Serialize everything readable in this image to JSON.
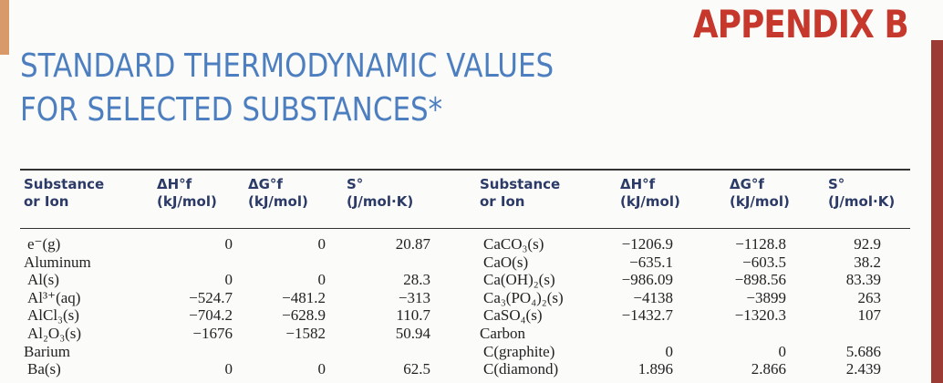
{
  "header": {
    "appendix": "APPENDIX B",
    "title_lines": [
      "STANDARD THERMODYNAMIC VALUES",
      "FOR SELECTED SUBSTANCES*"
    ]
  },
  "table": {
    "left": {
      "columns": [
        [
          "Substance",
          "or Ion"
        ],
        [
          "ΔH°f",
          "(kJ/mol)"
        ],
        [
          "ΔG°f",
          "(kJ/mol)"
        ],
        [
          "S°",
          "(J/mol·K)"
        ]
      ],
      "rows": [
        [
          "e⁻(g)",
          "0",
          "0",
          "20.87"
        ],
        [
          "Aluminum"
        ],
        [
          "Al(s)",
          "0",
          "0",
          "28.3"
        ],
        [
          "Al³⁺(aq)",
          "−524.7",
          "−481.2",
          "−313"
        ],
        [
          "AlCl₃(s)",
          "−704.2",
          "−628.9",
          "110.7"
        ],
        [
          "Al₂O₃(s)",
          "−1676",
          "−1582",
          "50.94"
        ],
        [
          "Barium"
        ],
        [
          "Ba(s)",
          "0",
          "0",
          "62.5"
        ]
      ]
    },
    "right": {
      "columns": [
        [
          "Substance",
          "or Ion"
        ],
        [
          "ΔH°f",
          "(kJ/mol)"
        ],
        [
          "ΔG°f",
          "(kJ/mol)"
        ],
        [
          "S°",
          "(J/mol·K)"
        ]
      ],
      "rows": [
        [
          "CaCO₃(s)",
          "−1206.9",
          "−1128.8",
          "92.9"
        ],
        [
          "CaO(s)",
          "−635.1",
          "−603.5",
          "38.2"
        ],
        [
          "Ca(OH)₂(s)",
          "−986.09",
          "−898.56",
          "83.39"
        ],
        [
          "Ca₃(PO₄)₂(s)",
          "−4138",
          "−3899",
          "263"
        ],
        [
          "CaSO₄(s)",
          "−1432.7",
          "−1320.3",
          "107"
        ],
        [
          "Carbon"
        ],
        [
          "C(graphite)",
          "0",
          "0",
          "5.686"
        ],
        [
          "C(diamond)",
          "1.896",
          "2.866",
          "2.439"
        ]
      ]
    }
  }
}
